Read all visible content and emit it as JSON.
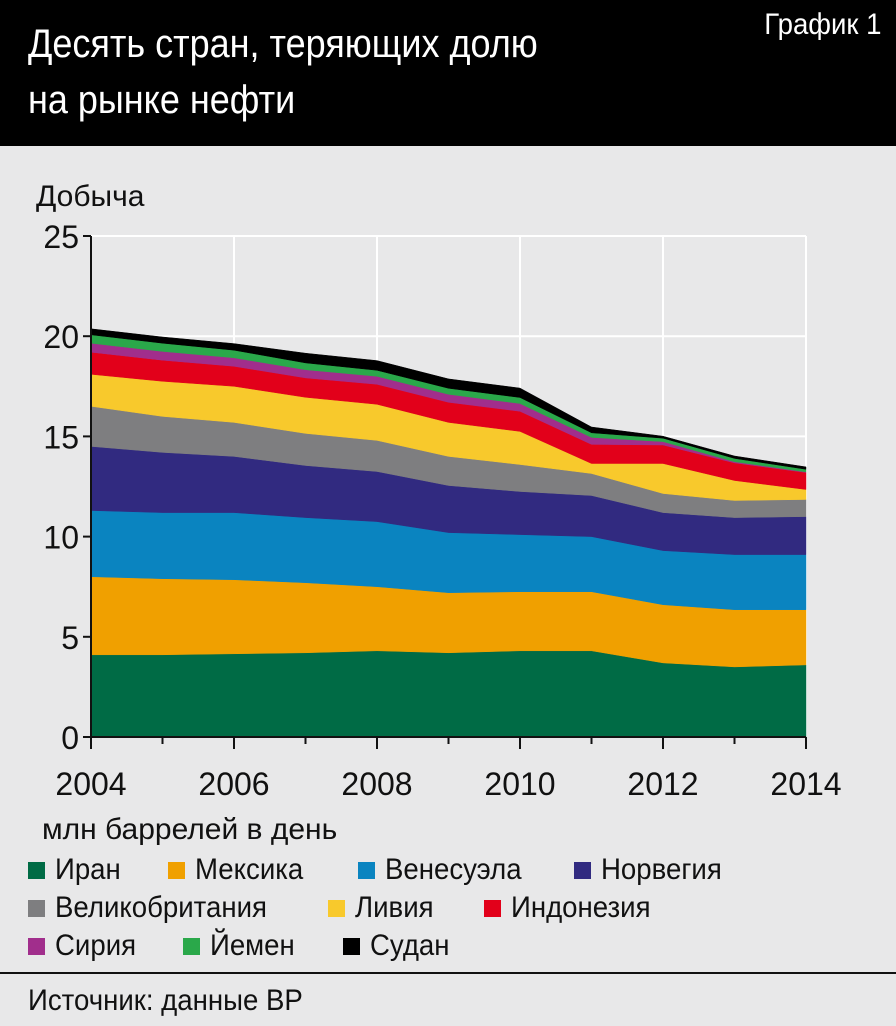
{
  "header": {
    "title_line1": "Десять стран, теряющих долю",
    "title_line2": "на рынке нефти",
    "badge": "График 1"
  },
  "source": "Источник: данные BP",
  "colors": {
    "background": "#e8e8e9",
    "header": "#000000",
    "grid": "#ffffff"
  },
  "chart_data": {
    "type": "area",
    "stacked": true,
    "title": "Десять стран, теряющих долю на рынке нефти",
    "ylabel": "Добыча",
    "xlabel": "млн баррелей в день",
    "ylim": [
      0,
      25
    ],
    "xlim": [
      2004,
      2014
    ],
    "yticks": [
      0,
      5,
      10,
      15,
      20,
      25
    ],
    "xticks": [
      2004,
      2006,
      2008,
      2010,
      2012,
      2014
    ],
    "grid": true,
    "legend_position": "bottom",
    "x": [
      2004,
      2005,
      2006,
      2007,
      2008,
      2009,
      2010,
      2011,
      2012,
      2013,
      2014
    ],
    "series": [
      {
        "name": "Иран",
        "color": "#006b45",
        "values": [
          4.1,
          4.1,
          4.15,
          4.2,
          4.3,
          4.2,
          4.3,
          4.3,
          3.7,
          3.5,
          3.6
        ]
      },
      {
        "name": "Мексика",
        "color": "#f0a000",
        "values": [
          3.9,
          3.8,
          3.7,
          3.5,
          3.2,
          3.0,
          2.95,
          2.95,
          2.9,
          2.85,
          2.75
        ]
      },
      {
        "name": "Венесуэла",
        "color": "#0a84c0",
        "values": [
          3.3,
          3.3,
          3.35,
          3.25,
          3.25,
          3.0,
          2.85,
          2.75,
          2.7,
          2.75,
          2.75
        ]
      },
      {
        "name": "Норвегия",
        "color": "#312a80",
        "values": [
          3.2,
          3.0,
          2.8,
          2.6,
          2.5,
          2.35,
          2.15,
          2.05,
          1.9,
          1.85,
          1.9
        ]
      },
      {
        "name": "Великобритания",
        "color": "#7e7e80",
        "values": [
          2.0,
          1.8,
          1.7,
          1.6,
          1.55,
          1.45,
          1.35,
          1.1,
          0.95,
          0.85,
          0.85
        ]
      },
      {
        "name": "Ливия",
        "color": "#f8c92c",
        "values": [
          1.6,
          1.75,
          1.8,
          1.8,
          1.8,
          1.7,
          1.65,
          0.5,
          1.5,
          1.0,
          0.5
        ]
      },
      {
        "name": "Индонезия",
        "color": "#e2001a",
        "values": [
          1.1,
          1.05,
          1.0,
          0.97,
          1.0,
          1.0,
          1.0,
          0.95,
          0.92,
          0.88,
          0.85
        ]
      },
      {
        "name": "Сирия",
        "color": "#a12e8c",
        "values": [
          0.45,
          0.44,
          0.42,
          0.41,
          0.4,
          0.4,
          0.39,
          0.35,
          0.17,
          0.06,
          0.03
        ]
      },
      {
        "name": "Йемен",
        "color": "#2aa84a",
        "values": [
          0.42,
          0.41,
          0.38,
          0.34,
          0.3,
          0.3,
          0.3,
          0.23,
          0.17,
          0.16,
          0.13
        ]
      },
      {
        "name": "Судан",
        "color": "#000000",
        "values": [
          0.3,
          0.31,
          0.33,
          0.48,
          0.48,
          0.47,
          0.47,
          0.29,
          0.1,
          0.12,
          0.12
        ]
      }
    ]
  }
}
